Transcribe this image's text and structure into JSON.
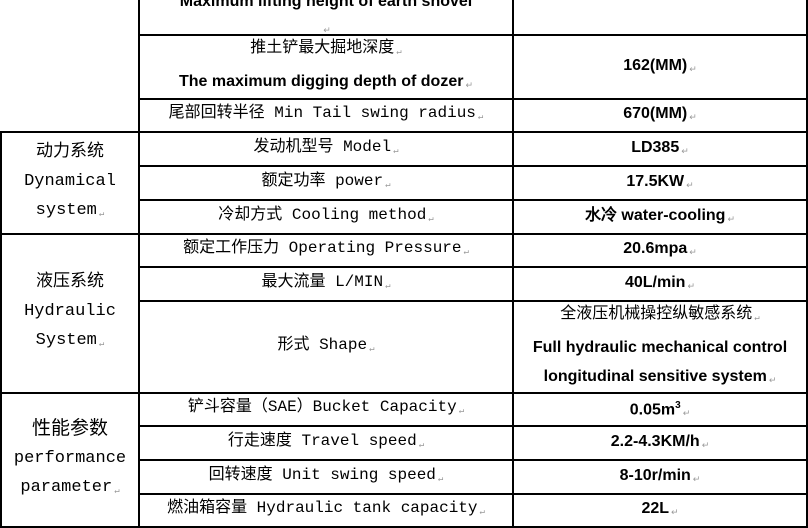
{
  "rows_top": [
    {
      "label": "Maximum lifting height of earth shovel",
      "value": ""
    },
    {
      "label_cn": "推土铲最大掘地深度",
      "label_en": "The maximum digging depth of dozer",
      "value": "162(MM)"
    },
    {
      "label": "尾部回转半径 Min Tail swing radius",
      "value": "670(MM)"
    }
  ],
  "dynamical": {
    "group_cn": "动力系统",
    "group_en1": "Dynamical",
    "group_en2": "system",
    "rows": [
      {
        "label": "发动机型号 Model",
        "value": "LD385"
      },
      {
        "label": "额定功率 power",
        "value": "17.5KW"
      },
      {
        "label": "冷却方式 Cooling method",
        "value": "水冷 water-cooling"
      }
    ]
  },
  "hydraulic": {
    "group_cn": "液压系统",
    "group_en1": "Hydraulic",
    "group_en2": "System",
    "rows": [
      {
        "label": "额定工作压力 Operating Pressure",
        "value": "20.6mpa"
      },
      {
        "label": "最大流量 L/MIN",
        "value": "40L/min"
      },
      {
        "label": "形式 Shape",
        "value_l1": "全液压机械操控纵敏感系统",
        "value_l2": "Full hydraulic mechanical control",
        "value_l3": "longitudinal sensitive system"
      }
    ]
  },
  "performance": {
    "group_cn": "性能参数",
    "group_en1": "performance",
    "group_en2": "parameter",
    "rows": [
      {
        "label": "铲斗容量（SAE）Bucket Capacity",
        "value": "0.05m",
        "value_sup": "3"
      },
      {
        "label": "行走速度 Travel speed",
        "value": "2.2-4.3KM/h"
      },
      {
        "label": "回转速度 Unit swing speed",
        "value": "8-10r/min"
      },
      {
        "label": "燃油箱容量 Hydraulic tank capacity",
        "value": "22L"
      }
    ]
  }
}
